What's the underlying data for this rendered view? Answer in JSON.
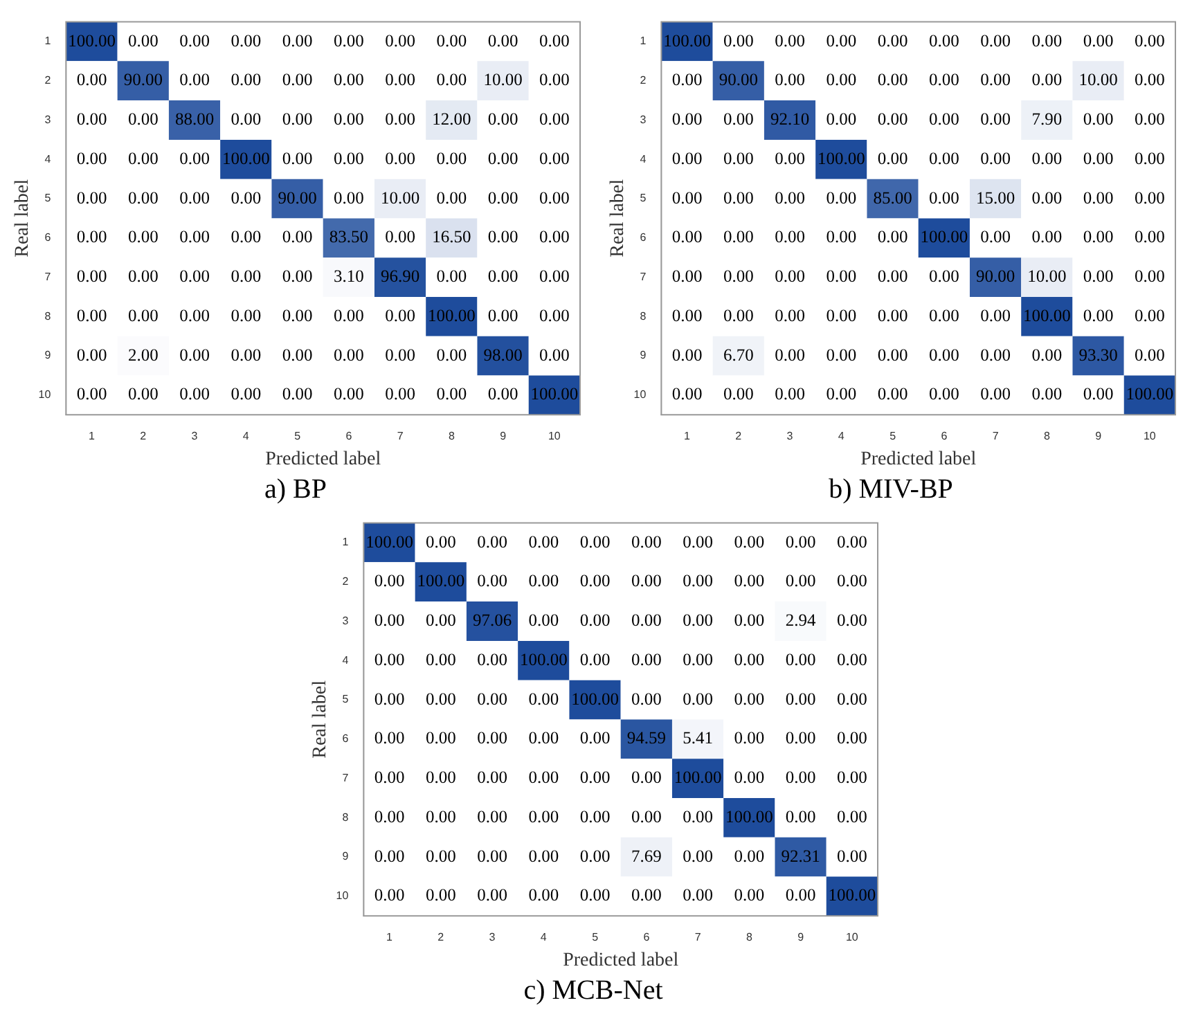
{
  "chart_data": [
    {
      "type": "heatmap",
      "title": "a) BP",
      "xlabel": "Predicted label",
      "ylabel": "Real label",
      "categories": [
        "1",
        "2",
        "3",
        "4",
        "5",
        "6",
        "7",
        "8",
        "9",
        "10"
      ],
      "y_categories": [
        "1",
        "2",
        "3",
        "4",
        "5",
        "6",
        "7",
        "8",
        "9",
        "10"
      ],
      "cells": [
        [
          100,
          0,
          0,
          0,
          0,
          0,
          0,
          0,
          0,
          0
        ],
        [
          0,
          90,
          0,
          0,
          0,
          0,
          0,
          0,
          10,
          0
        ],
        [
          0,
          0,
          88,
          0,
          0,
          0,
          0,
          12,
          0,
          0
        ],
        [
          0,
          0,
          0,
          100,
          0,
          0,
          0,
          0,
          0,
          0
        ],
        [
          0,
          0,
          0,
          0,
          90,
          0,
          10,
          0,
          0,
          0
        ],
        [
          0,
          0,
          0,
          0,
          0,
          83.5,
          0,
          16.5,
          0,
          0
        ],
        [
          0,
          0,
          0,
          0,
          0,
          3.1,
          96.9,
          0,
          0,
          0
        ],
        [
          0,
          0,
          0,
          0,
          0,
          0,
          0,
          100,
          0,
          0
        ],
        [
          0,
          2,
          0,
          0,
          0,
          0,
          0,
          0,
          98,
          0
        ],
        [
          0,
          0,
          0,
          0,
          0,
          0,
          0,
          0,
          0,
          100
        ]
      ],
      "cell_labels": [
        [
          "100.00",
          "0.00",
          "0.00",
          "0.00",
          "0.00",
          "0.00",
          "0.00",
          "0.00",
          "0.00",
          "0.00"
        ],
        [
          "0.00",
          "90.00",
          "0.00",
          "0.00",
          "0.00",
          "0.00",
          "0.00",
          "0.00",
          "10.00",
          "0.00"
        ],
        [
          "0.00",
          "0.00",
          "88.00",
          "0.00",
          "0.00",
          "0.00",
          "0.00",
          "12.00",
          "0.00",
          "0.00"
        ],
        [
          "0.00",
          "0.00",
          "0.00",
          "100.00",
          "0.00",
          "0.00",
          "0.00",
          "0.00",
          "0.00",
          "0.00"
        ],
        [
          "0.00",
          "0.00",
          "0.00",
          "0.00",
          "90.00",
          "0.00",
          "10.00",
          "0.00",
          "0.00",
          "0.00"
        ],
        [
          "0.00",
          "0.00",
          "0.00",
          "0.00",
          "0.00",
          "83.50",
          "0.00",
          "16.50",
          "0.00",
          "0.00"
        ],
        [
          "0.00",
          "0.00",
          "0.00",
          "0.00",
          "0.00",
          "3.10",
          "96.90",
          "0.00",
          "0.00",
          "0.00"
        ],
        [
          "0.00",
          "0.00",
          "0.00",
          "0.00",
          "0.00",
          "0.00",
          "0.00",
          "100.00",
          "0.00",
          "0.00"
        ],
        [
          "0.00",
          "2.00",
          "0.00",
          "0.00",
          "0.00",
          "0.00",
          "0.00",
          "0.00",
          "98.00",
          "0.00"
        ],
        [
          "0.00",
          "0.00",
          "0.00",
          "0.00",
          "0.00",
          "0.00",
          "0.00",
          "0.00",
          "0.00",
          "100.00"
        ]
      ]
    },
    {
      "type": "heatmap",
      "title": "b) MIV-BP",
      "xlabel": "Predicted label",
      "ylabel": "Real label",
      "categories": [
        "1",
        "2",
        "3",
        "4",
        "5",
        "6",
        "7",
        "8",
        "9",
        "10"
      ],
      "y_categories": [
        "1",
        "2",
        "3",
        "4",
        "5",
        "6",
        "7",
        "8",
        "9",
        "10"
      ],
      "cells": [
        [
          100,
          0,
          0,
          0,
          0,
          0,
          0,
          0,
          0,
          0
        ],
        [
          0,
          90,
          0,
          0,
          0,
          0,
          0,
          0,
          10,
          0
        ],
        [
          0,
          0,
          92.1,
          0,
          0,
          0,
          0,
          7.9,
          0,
          0
        ],
        [
          0,
          0,
          0,
          100,
          0,
          0,
          0,
          0,
          0,
          0
        ],
        [
          0,
          0,
          0,
          0,
          85,
          0,
          15,
          0,
          0,
          0
        ],
        [
          0,
          0,
          0,
          0,
          0,
          100,
          0,
          0,
          0,
          0
        ],
        [
          0,
          0,
          0,
          0,
          0,
          0,
          90,
          10,
          0,
          0
        ],
        [
          0,
          0,
          0,
          0,
          0,
          0,
          0,
          100,
          0,
          0
        ],
        [
          0,
          6.7,
          0,
          0,
          0,
          0,
          0,
          0,
          93.3,
          0
        ],
        [
          0,
          0,
          0,
          0,
          0,
          0,
          0,
          0,
          0,
          100
        ]
      ],
      "cell_labels": [
        [
          "100.00",
          "0.00",
          "0.00",
          "0.00",
          "0.00",
          "0.00",
          "0.00",
          "0.00",
          "0.00",
          "0.00"
        ],
        [
          "0.00",
          "90.00",
          "0.00",
          "0.00",
          "0.00",
          "0.00",
          "0.00",
          "0.00",
          "10.00",
          "0.00"
        ],
        [
          "0.00",
          "0.00",
          "92.10",
          "0.00",
          "0.00",
          "0.00",
          "0.00",
          "7.90",
          "0.00",
          "0.00"
        ],
        [
          "0.00",
          "0.00",
          "0.00",
          "100.00",
          "0.00",
          "0.00",
          "0.00",
          "0.00",
          "0.00",
          "0.00"
        ],
        [
          "0.00",
          "0.00",
          "0.00",
          "0.00",
          "85.00",
          "0.00",
          "15.00",
          "0.00",
          "0.00",
          "0.00"
        ],
        [
          "0.00",
          "0.00",
          "0.00",
          "0.00",
          "0.00",
          "100.00",
          "0.00",
          "0.00",
          "0.00",
          "0.00"
        ],
        [
          "0.00",
          "0.00",
          "0.00",
          "0.00",
          "0.00",
          "0.00",
          "90.00",
          "10.00",
          "0.00",
          "0.00"
        ],
        [
          "0.00",
          "0.00",
          "0.00",
          "0.00",
          "0.00",
          "0.00",
          "0.00",
          "100.00",
          "0.00",
          "0.00"
        ],
        [
          "0.00",
          "6.70",
          "0.00",
          "0.00",
          "0.00",
          "0.00",
          "0.00",
          "0.00",
          "93.30",
          "0.00"
        ],
        [
          "0.00",
          "0.00",
          "0.00",
          "0.00",
          "0.00",
          "0.00",
          "0.00",
          "0.00",
          "0.00",
          "100.00"
        ]
      ]
    },
    {
      "type": "heatmap",
      "title": "c) MCB-Net",
      "xlabel": "Predicted label",
      "ylabel": "Real label",
      "categories": [
        "1",
        "2",
        "3",
        "4",
        "5",
        "6",
        "7",
        "8",
        "9",
        "10"
      ],
      "y_categories": [
        "1",
        "2",
        "3",
        "4",
        "5",
        "6",
        "7",
        "8",
        "9",
        "10"
      ],
      "cells": [
        [
          100,
          0,
          0,
          0,
          0,
          0,
          0,
          0,
          0,
          0
        ],
        [
          0,
          100,
          0,
          0,
          0,
          0,
          0,
          0,
          0,
          0
        ],
        [
          0,
          0,
          97.06,
          0,
          0,
          0,
          0,
          0,
          2.94,
          0
        ],
        [
          0,
          0,
          0,
          100,
          0,
          0,
          0,
          0,
          0,
          0
        ],
        [
          0,
          0,
          0,
          0,
          100,
          0,
          0,
          0,
          0,
          0
        ],
        [
          0,
          0,
          0,
          0,
          0,
          94.59,
          5.41,
          0,
          0,
          0
        ],
        [
          0,
          0,
          0,
          0,
          0,
          0,
          100,
          0,
          0,
          0
        ],
        [
          0,
          0,
          0,
          0,
          0,
          0,
          0,
          100,
          0,
          0
        ],
        [
          0,
          0,
          0,
          0,
          0,
          7.69,
          0,
          0,
          92.31,
          0
        ],
        [
          0,
          0,
          0,
          0,
          0,
          0,
          0,
          0,
          0,
          100
        ]
      ],
      "cell_labels": [
        [
          "100.00",
          "0.00",
          "0.00",
          "0.00",
          "0.00",
          "0.00",
          "0.00",
          "0.00",
          "0.00",
          "0.00"
        ],
        [
          "0.00",
          "100.00",
          "0.00",
          "0.00",
          "0.00",
          "0.00",
          "0.00",
          "0.00",
          "0.00",
          "0.00"
        ],
        [
          "0.00",
          "0.00",
          "97.06",
          "0.00",
          "0.00",
          "0.00",
          "0.00",
          "0.00",
          "2.94",
          "0.00"
        ],
        [
          "0.00",
          "0.00",
          "0.00",
          "100.00",
          "0.00",
          "0.00",
          "0.00",
          "0.00",
          "0.00",
          "0.00"
        ],
        [
          "0.00",
          "0.00",
          "0.00",
          "0.00",
          "100.00",
          "0.00",
          "0.00",
          "0.00",
          "0.00",
          "0.00"
        ],
        [
          "0.00",
          "0.00",
          "0.00",
          "0.00",
          "0.00",
          "94.59",
          "5.41",
          "0.00",
          "0.00",
          "0.00"
        ],
        [
          "0.00",
          "0.00",
          "0.00",
          "0.00",
          "0.00",
          "0.00",
          "100.00",
          "0.00",
          "0.00",
          "0.00"
        ],
        [
          "0.00",
          "0.00",
          "0.00",
          "0.00",
          "0.00",
          "0.00",
          "0.00",
          "100.00",
          "0.00",
          "0.00"
        ],
        [
          "0.00",
          "0.00",
          "0.00",
          "0.00",
          "0.00",
          "7.69",
          "0.00",
          "0.00",
          "92.31",
          "0.00"
        ],
        [
          "0.00",
          "0.00",
          "0.00",
          "0.00",
          "0.00",
          "0.00",
          "0.00",
          "0.00",
          "0.00",
          "100.00"
        ]
      ]
    }
  ]
}
